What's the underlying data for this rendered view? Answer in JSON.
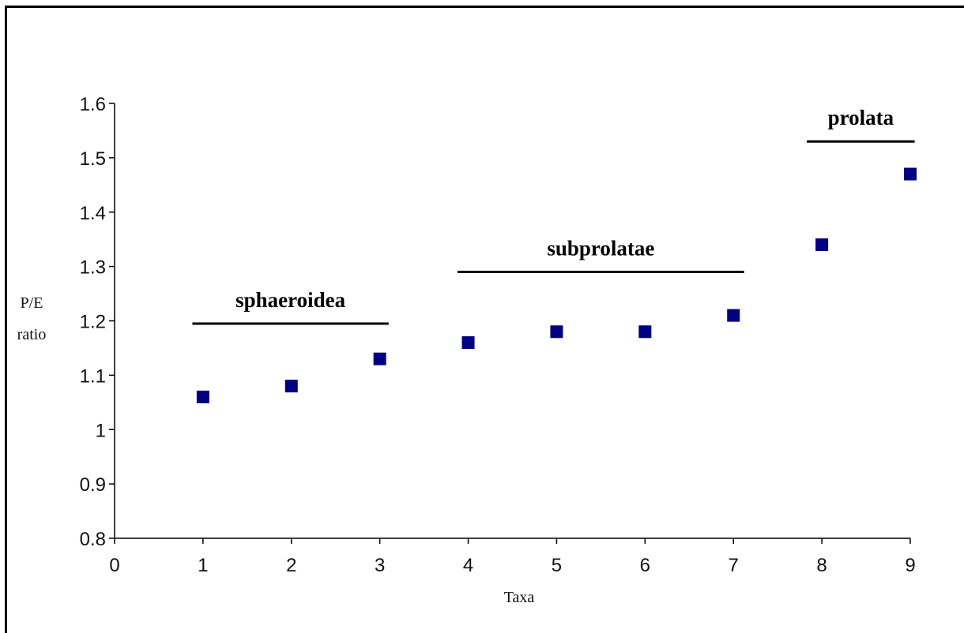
{
  "chart_data": {
    "type": "scatter",
    "xlabel": "Taxa",
    "ylabel": [
      "P/E",
      "ratio"
    ],
    "xlim": [
      0,
      9
    ],
    "ylim": [
      0.8,
      1.6
    ],
    "xticks": [
      "0",
      "1",
      "2",
      "3",
      "4",
      "5",
      "6",
      "7",
      "8",
      "9"
    ],
    "yticks": [
      "0.8",
      "0.9",
      "1",
      "1.1",
      "1.2",
      "1.3",
      "1.4",
      "1.5",
      "1.6"
    ],
    "grid": false,
    "legend": "none",
    "marker_color": "#000080",
    "points": [
      {
        "x": 1,
        "y": 1.06
      },
      {
        "x": 2,
        "y": 1.08
      },
      {
        "x": 3,
        "y": 1.13
      },
      {
        "x": 4,
        "y": 1.16
      },
      {
        "x": 5,
        "y": 1.18
      },
      {
        "x": 6,
        "y": 1.18
      },
      {
        "x": 7,
        "y": 1.21
      },
      {
        "x": 8,
        "y": 1.34
      },
      {
        "x": 9,
        "y": 1.47
      }
    ],
    "groups": [
      {
        "label": "sphaeroidea",
        "x_start": 0.88,
        "x_end": 3.1,
        "y": 1.195
      },
      {
        "label": "subprolatae",
        "x_start": 3.88,
        "x_end": 7.12,
        "y": 1.29
      },
      {
        "label": "prolata",
        "x_start": 7.83,
        "x_end": 9.05,
        "y": 1.53
      }
    ]
  }
}
